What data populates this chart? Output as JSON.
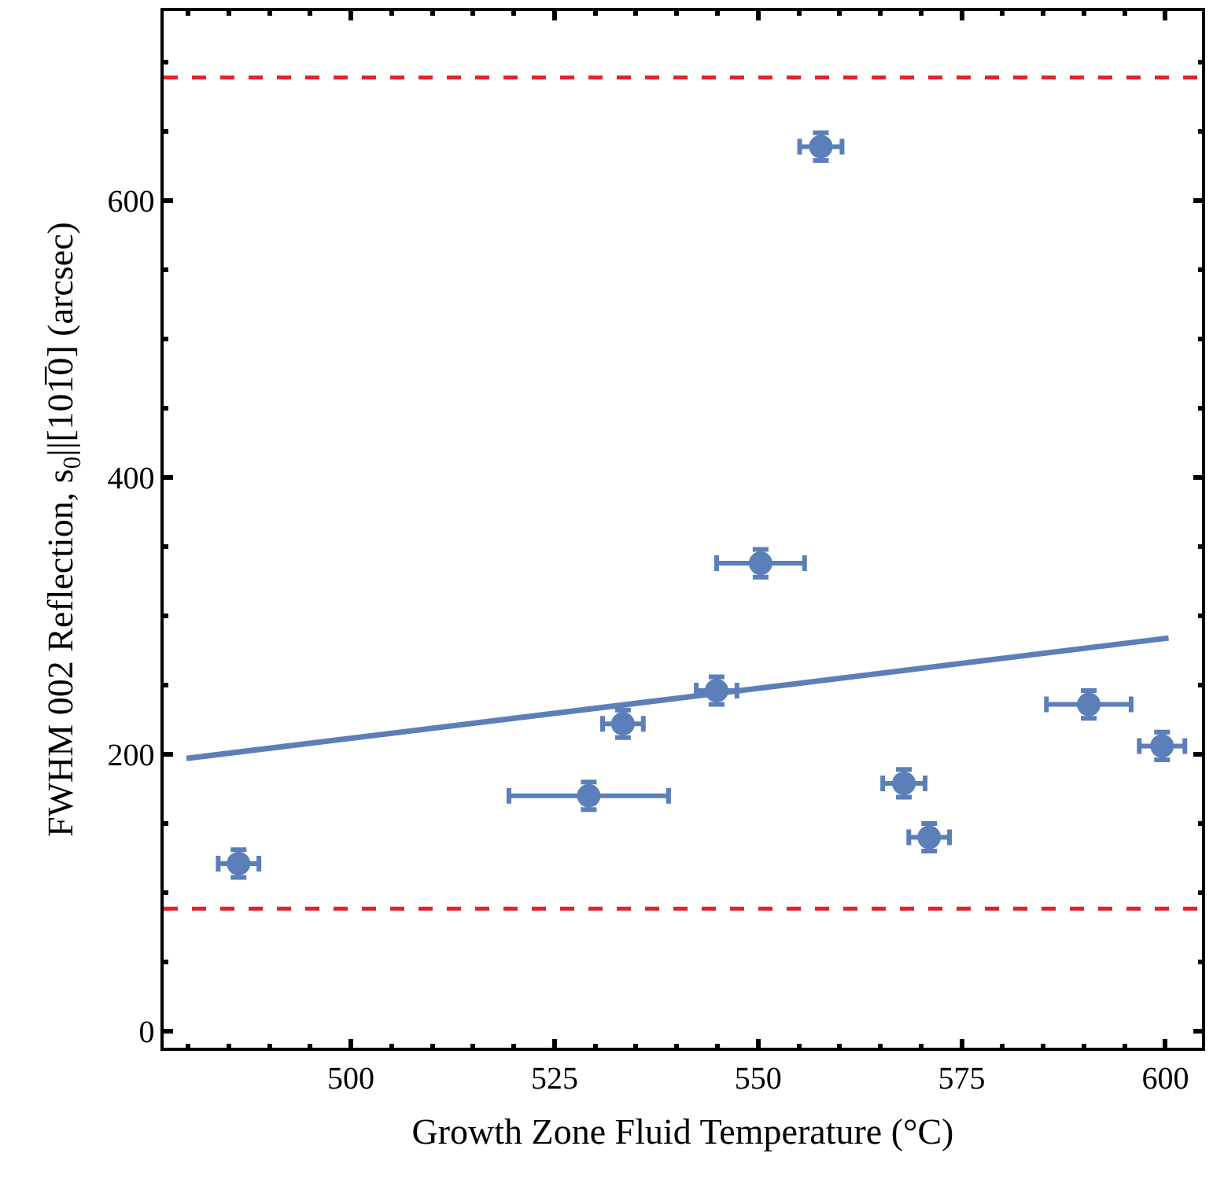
{
  "chart_data": {
    "type": "scatter",
    "xlabel": "Growth Zone Fluid Temperature (°C)",
    "ylabel": "FWHM 002 Reflection, s$_{0}$||[101̅0] (arcsec)",
    "xlim": [
      477,
      604.5
    ],
    "xticks": [
      500,
      525,
      550,
      575,
      600
    ],
    "ylim": [
      -12,
      737
    ],
    "yticks": [
      0,
      200,
      400,
      600
    ],
    "marker": "circle",
    "series": [
      {
        "color": "#5b7fb9",
        "x": [
          486.2,
          529.2,
          533.4,
          544.9,
          550.3,
          557.7,
          567.9,
          571.0,
          590.6,
          599.6
        ],
        "values": [
          121,
          170,
          222,
          246,
          338,
          639,
          179,
          140,
          236,
          206
        ],
        "xerrors": [
          2.5,
          9.8,
          2.5,
          2.5,
          5.4,
          2.6,
          2.6,
          2.5,
          5.2,
          2.8
        ],
        "errors": [
          10,
          10,
          10,
          10,
          10,
          10,
          10,
          10,
          10,
          10
        ]
      },
      {
        "type": "line",
        "marker": "none",
        "color": "#5b7fb9",
        "x": [
          479.8,
          600.4
        ],
        "values": [
          197,
          284
        ]
      }
    ],
    "ref_lines": [
      {
        "axis": "y",
        "value": 689,
        "color": "#e8202a",
        "line_style": "dashed"
      },
      {
        "axis": "y",
        "value": 88.5,
        "color": "#e8202a",
        "line_style": "dashed"
      }
    ]
  }
}
